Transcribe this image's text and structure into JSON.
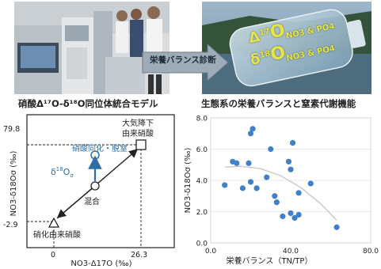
{
  "left_caption": "硝酸Δ¹⁷O-δ¹⁸O同位体統合モデル",
  "right_caption": "生態系の栄養バランスと窒素代謝機能",
  "arrow_label": "栄養バランス診断",
  "bottle_text": {
    "line1_main": "Δ",
    "line1_sup": "17",
    "line1_big": "O",
    "line1_sub": "NO3 & PO4",
    "line2_main": "δ",
    "line2_sup": "18",
    "line2_big": "O",
    "line2_sub": "NO3 & PO4"
  },
  "model": {
    "y_top_label": "79.8",
    "y_bottom_label": "-2.9",
    "x_left_label": "0",
    "x_right_label": "26.3",
    "y_axis_label": "NO3-δ18Oσ (‰)",
    "x_axis_label": "NO3-Δ17O (‰)",
    "upper_endmember": [
      "大気降下",
      "由来硝酸"
    ],
    "lower_endmember": "硝化由来硝酸",
    "assim_label": "硝酸同化・脱窒",
    "delta_label_main": "δ",
    "delta_label_sup": "18",
    "delta_label_O": "O",
    "delta_label_sub": "σ",
    "mix_label": "混合",
    "colors": {
      "assim": "#2e6ea6",
      "frame": "#222222"
    }
  },
  "chart_data": {
    "type": "scatter",
    "title": "",
    "xlabel": "栄養バランス（TN/TP）",
    "ylabel": "NO3-δ18Oσ (‰)",
    "xlim": [
      0,
      80
    ],
    "ylim": [
      0,
      8
    ],
    "x_ticks": [
      "0.0",
      "40.0",
      "80.0"
    ],
    "y_ticks": [
      "0.0",
      "2.0",
      "4.0",
      "6.0",
      "8.0"
    ],
    "marker_color": "#3f80c8",
    "trend_color": "#c8c8c8",
    "points": [
      {
        "x": 7,
        "y": 3.7
      },
      {
        "x": 11,
        "y": 5.2
      },
      {
        "x": 13,
        "y": 5.1
      },
      {
        "x": 16,
        "y": 3.5
      },
      {
        "x": 19,
        "y": 5.1
      },
      {
        "x": 20,
        "y": 3.9
      },
      {
        "x": 20,
        "y": 7.0
      },
      {
        "x": 21,
        "y": 7.3
      },
      {
        "x": 23,
        "y": 3.5
      },
      {
        "x": 28,
        "y": 4.2
      },
      {
        "x": 30,
        "y": 6.0
      },
      {
        "x": 32,
        "y": 3.0
      },
      {
        "x": 33,
        "y": 2.6
      },
      {
        "x": 36,
        "y": 1.7
      },
      {
        "x": 39,
        "y": 5.2
      },
      {
        "x": 40,
        "y": 4.7
      },
      {
        "x": 40,
        "y": 1.9
      },
      {
        "x": 41,
        "y": 6.4
      },
      {
        "x": 42,
        "y": 1.6
      },
      {
        "x": 44,
        "y": 3.2
      },
      {
        "x": 44,
        "y": 1.8
      },
      {
        "x": 50,
        "y": 3.8
      },
      {
        "x": 63,
        "y": 1.0
      }
    ],
    "trend": [
      {
        "x": 7,
        "y": 4.85
      },
      {
        "x": 15,
        "y": 4.9
      },
      {
        "x": 25,
        "y": 4.75
      },
      {
        "x": 35,
        "y": 4.3
      },
      {
        "x": 45,
        "y": 3.55
      },
      {
        "x": 55,
        "y": 2.5
      },
      {
        "x": 63,
        "y": 1.45
      }
    ]
  }
}
